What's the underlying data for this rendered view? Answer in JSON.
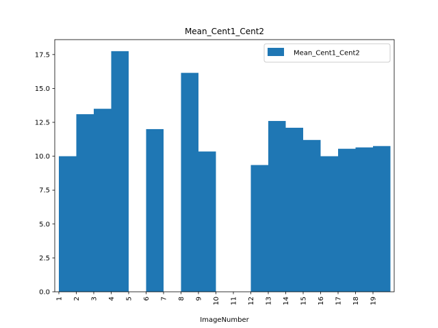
{
  "chart_data": {
    "type": "bar",
    "title": "Mean_Cent1_Cent2",
    "xlabel": "ImageNumber",
    "ylabel": "",
    "categories": [
      "1",
      "2",
      "3",
      "4",
      "5",
      "6",
      "7",
      "8",
      "9",
      "10",
      "11",
      "12",
      "13",
      "14",
      "15",
      "16",
      "17",
      "18",
      "19"
    ],
    "series": [
      {
        "name": "Mean_Cent1_Cent2",
        "color": "#1f77b4",
        "values": [
          10.0,
          13.1,
          13.5,
          17.75,
          0,
          12.0,
          0,
          16.15,
          10.35,
          0,
          0,
          9.35,
          12.6,
          12.1,
          11.2,
          10.0,
          10.55,
          10.65,
          10.75
        ]
      }
    ],
    "ylim": [
      0,
      18.6
    ],
    "yticks": [
      0.0,
      2.5,
      5.0,
      7.5,
      10.0,
      12.5,
      15.0,
      17.5
    ],
    "ytick_labels": [
      "0.0",
      "2.5",
      "5.0",
      "7.5",
      "10.0",
      "12.5",
      "15.0",
      "17.5"
    ],
    "grid": false,
    "legend_position": "top-right",
    "bar_width_ratio": 1.0
  }
}
